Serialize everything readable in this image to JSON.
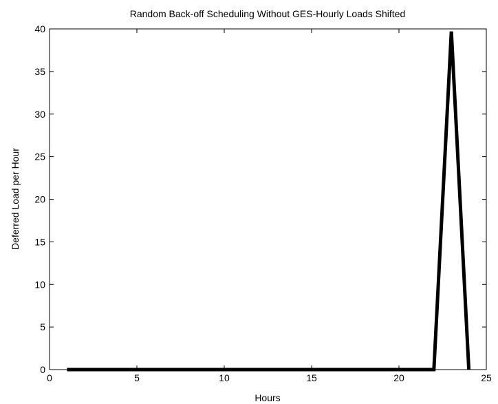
{
  "chart_data": {
    "type": "line",
    "title": "Random Back-off Scheduling Without GES-Hourly Loads Shifted",
    "xlabel": "Hours",
    "ylabel": "Deferred Load per Hour",
    "xlim": [
      0,
      25
    ],
    "ylim": [
      0,
      40
    ],
    "xticks": [
      0,
      5,
      10,
      15,
      20,
      25
    ],
    "yticks": [
      0,
      5,
      10,
      15,
      20,
      25,
      30,
      35,
      40
    ],
    "grid": false,
    "legend": "none",
    "line_color": "#000000",
    "series": [
      {
        "x": [
          1,
          2,
          3,
          4,
          5,
          6,
          7,
          8,
          9,
          10,
          11,
          12,
          13,
          14,
          15,
          16,
          17,
          18,
          19,
          20,
          21,
          22,
          23,
          24
        ],
        "values": [
          0,
          0,
          0,
          0,
          0,
          0,
          0,
          0,
          0,
          0,
          0,
          0,
          0,
          0,
          0,
          0,
          0,
          0,
          0,
          0,
          0,
          0,
          39.7,
          0
        ]
      }
    ]
  }
}
